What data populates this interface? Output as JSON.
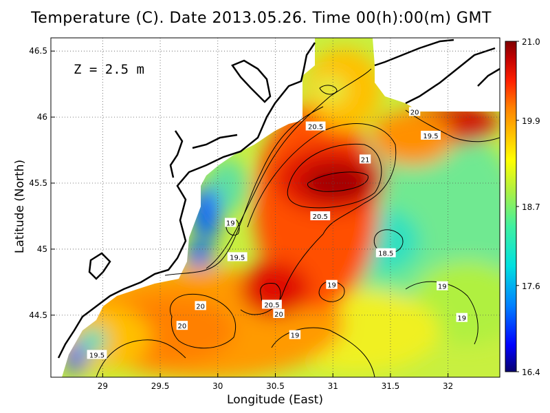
{
  "chart_data": {
    "type": "heatmap",
    "title": "Temperature (C). Date 2013.05.26. Time 00(h):00(m) GMT",
    "annotation": "Z = 2.5 m",
    "xlabel": "Longitude (East)",
    "ylabel": "Latitude (North)",
    "xlim": [
      28.55,
      32.45
    ],
    "ylim": [
      44.03,
      46.6
    ],
    "x_ticks": [
      29,
      29.5,
      30,
      30.5,
      31,
      31.5,
      32
    ],
    "x_tick_labels": [
      "29",
      "29.5",
      "30",
      "30.5",
      "31",
      "31.5",
      "32"
    ],
    "y_ticks": [
      44.5,
      45,
      45.5,
      46,
      46.5
    ],
    "y_tick_labels": [
      "44.5",
      "45",
      "45.5",
      "46",
      "46.5"
    ],
    "grid": true,
    "colorbar": {
      "min": 16.4,
      "max": 21.0,
      "tick_values": [
        21.0,
        19.9,
        18.7,
        17.6,
        16.4
      ],
      "tick_labels": [
        "21.0",
        "19.9",
        "18.7",
        "17.6",
        "16.4"
      ],
      "colors": [
        "#08006e",
        "#0000ff",
        "#0080ff",
        "#00e0e0",
        "#40f0a0",
        "#b0f040",
        "#ffff00",
        "#ffc000",
        "#ff8000",
        "#ff2000",
        "#c00000",
        "#800000"
      ]
    },
    "contour_labels": [
      {
        "text": "21",
        "x": 31.28,
        "y": 45.68
      },
      {
        "text": "20.5",
        "x": 30.85,
        "y": 45.93
      },
      {
        "text": "20.5",
        "x": 30.89,
        "y": 45.25
      },
      {
        "text": "20.5",
        "x": 30.47,
        "y": 44.58
      },
      {
        "text": "20",
        "x": 31.71,
        "y": 46.04
      },
      {
        "text": "20",
        "x": 29.85,
        "y": 44.57
      },
      {
        "text": "20",
        "x": 29.69,
        "y": 44.42
      },
      {
        "text": "20",
        "x": 30.53,
        "y": 44.51
      },
      {
        "text": "19.5",
        "x": 31.85,
        "y": 45.86
      },
      {
        "text": "19.5",
        "x": 30.17,
        "y": 44.94
      },
      {
        "text": "19.5",
        "x": 28.95,
        "y": 44.2
      },
      {
        "text": "19",
        "x": 30.11,
        "y": 45.2
      },
      {
        "text": "19",
        "x": 30.99,
        "y": 44.73
      },
      {
        "text": "19",
        "x": 31.95,
        "y": 44.72
      },
      {
        "text": "19",
        "x": 32.12,
        "y": 44.48
      },
      {
        "text": "19",
        "x": 30.67,
        "y": 44.35
      },
      {
        "text": "18.5",
        "x": 31.46,
        "y": 44.97
      }
    ]
  }
}
